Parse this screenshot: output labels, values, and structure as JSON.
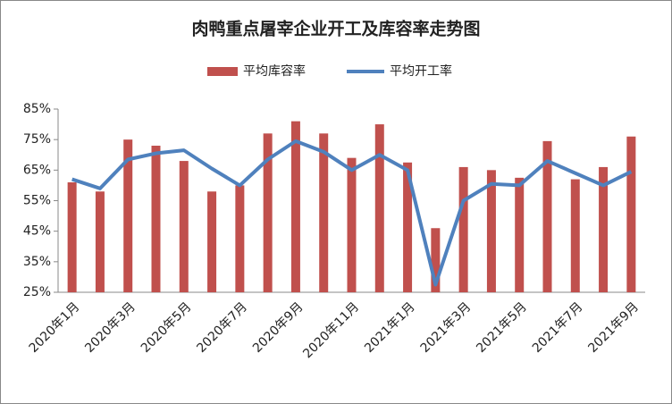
{
  "chart_data": {
    "type": "bar_line",
    "title": "肉鸭重点屠宰企业开工及库容率走势图",
    "categories": [
      "2020年1月",
      null,
      "2020年3月",
      null,
      "2020年5月",
      null,
      "2020年7月",
      null,
      "2020年9月",
      null,
      "2020年11月",
      null,
      "2021年1月",
      null,
      "2021年3月",
      null,
      "2021年5月",
      null,
      "2021年7月",
      null,
      "2021年9月"
    ],
    "series": [
      {
        "name": "平均库容率",
        "type": "bar",
        "color": "#c0504d",
        "values": [
          61,
          58,
          75,
          73,
          68,
          58,
          60,
          77,
          81,
          77,
          69,
          80,
          67.5,
          46,
          66,
          65,
          62.5,
          74.5,
          62,
          66,
          76
        ]
      },
      {
        "name": "平均开工率",
        "type": "line",
        "color": "#4f81bd",
        "values": [
          62,
          59,
          68.5,
          70.5,
          71.5,
          65.5,
          60,
          68.5,
          74.5,
          71,
          65,
          70,
          65,
          27.5,
          55,
          60.5,
          60,
          68,
          64,
          60,
          64.5
        ]
      }
    ],
    "ylim": [
      25,
      85
    ],
    "yticks": [
      {
        "value": 25,
        "label": "25%"
      },
      {
        "value": 35,
        "label": "35%"
      },
      {
        "value": 45,
        "label": "45%"
      },
      {
        "value": 55,
        "label": "55%"
      },
      {
        "value": 65,
        "label": "65%"
      },
      {
        "value": 75,
        "label": "75%"
      },
      {
        "value": 85,
        "label": "85%"
      }
    ],
    "legend": "top"
  }
}
